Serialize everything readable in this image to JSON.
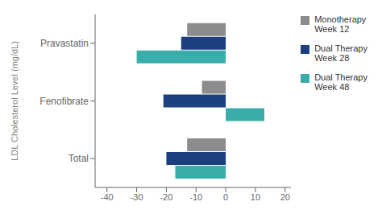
{
  "chart_data": {
    "type": "bar",
    "orientation": "horizontal",
    "categories": [
      "Pravastatin",
      "Fenofibrate",
      "Total"
    ],
    "series": [
      {
        "name": "Monotherapy\nWeek 12",
        "color": "#8c8c8c",
        "values": [
          -13,
          -8,
          -13
        ]
      },
      {
        "name": "Dual Therapy\nWeek 28",
        "color": "#1b3f7f",
        "values": [
          -15,
          -21,
          -20
        ]
      },
      {
        "name": "Dual Therapy\nWeek 48",
        "color": "#3aacaa",
        "values": [
          -30,
          13,
          -17
        ]
      }
    ],
    "ylabel": "LDL Cholesterol Level (mg/dL)",
    "xlim": [
      -44,
      22
    ],
    "xticks": [
      -40,
      -30,
      -20,
      -10,
      0,
      10,
      20
    ],
    "grid": false,
    "legend": "right"
  }
}
